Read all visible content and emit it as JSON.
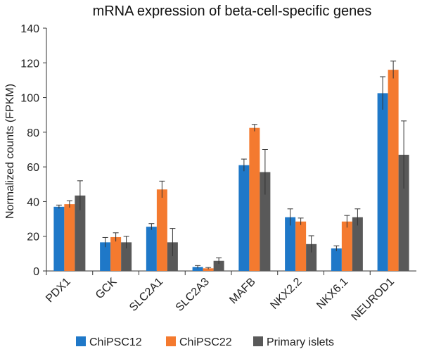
{
  "chart_data": {
    "type": "bar",
    "title": "mRNA expression of beta-cell-specific genes",
    "xlabel": "",
    "ylabel": "Normalized counts (FPKM)",
    "ylim": [
      0,
      140
    ],
    "yticks": [
      0,
      20,
      40,
      60,
      80,
      100,
      120,
      140
    ],
    "grid": false,
    "legend_position": "bottom",
    "categories": [
      "PDX1",
      "GCK",
      "SLC2A1",
      "SLC2A3",
      "MAFB",
      "NKX2.2",
      "NKX6.1",
      "NEUROD1"
    ],
    "series": [
      {
        "name": "ChiPSC12",
        "color": "#1f78c8",
        "values": [
          37,
          16.5,
          25.5,
          2.3,
          61,
          31,
          13,
          102.5
        ],
        "errors": [
          1.0,
          2.8,
          1.8,
          0.8,
          3.5,
          4.8,
          1.5,
          9.5
        ]
      },
      {
        "name": "ChiPSC22",
        "color": "#f47a2f",
        "values": [
          38.5,
          19.5,
          47,
          1.5,
          82.5,
          28.5,
          28.5,
          116
        ],
        "errors": [
          2.0,
          2.5,
          4.8,
          0.5,
          2.0,
          2.0,
          3.5,
          5.0
        ]
      },
      {
        "name": "Primary islets",
        "color": "#595959",
        "values": [
          43.5,
          16.5,
          16.5,
          5.8,
          57,
          15.5,
          31,
          67
        ],
        "errors": [
          8.5,
          3.5,
          8.0,
          1.8,
          13.0,
          4.8,
          4.8,
          19.5
        ]
      }
    ]
  }
}
